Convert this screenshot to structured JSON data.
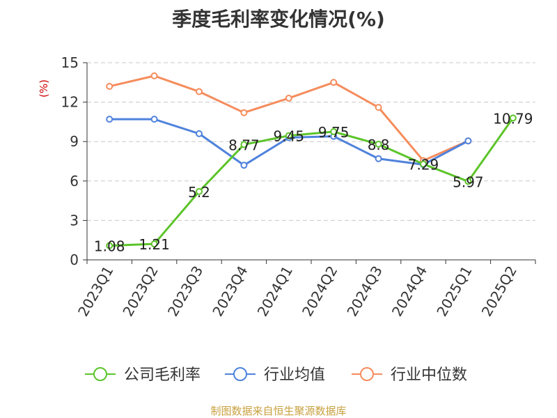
{
  "title": "季度毛利率变化情况(%)",
  "source": "制图数据来自恒生聚源数据库",
  "chart_data": {
    "type": "line",
    "title": "季度毛利率变化情况(%)",
    "ylabel": "(%)",
    "ylim": [
      0,
      15
    ],
    "yticks": [
      0,
      3,
      6,
      9,
      12,
      15
    ],
    "grid": true,
    "legend_position": "bottom",
    "categories": [
      "2023Q1",
      "2023Q2",
      "2023Q3",
      "2023Q4",
      "2024Q1",
      "2024Q2",
      "2024Q3",
      "2024Q4",
      "2025Q1",
      "2025Q2"
    ],
    "series": [
      {
        "name": "公司毛利率",
        "color": "#5cc42a",
        "show_labels": true,
        "values": [
          1.08,
          1.21,
          5.2,
          8.77,
          9.45,
          9.75,
          8.8,
          7.29,
          5.97,
          10.79
        ]
      },
      {
        "name": "行业均值",
        "color": "#4f82dc",
        "show_labels": false,
        "values": [
          10.7,
          10.7,
          9.6,
          7.2,
          9.3,
          9.4,
          7.7,
          7.25,
          9.05,
          null
        ]
      },
      {
        "name": "行业中位数",
        "color": "#f58c5c",
        "show_labels": false,
        "values": [
          13.2,
          14.0,
          12.8,
          11.2,
          12.3,
          13.5,
          11.6,
          7.55,
          9.05,
          null
        ]
      }
    ]
  }
}
